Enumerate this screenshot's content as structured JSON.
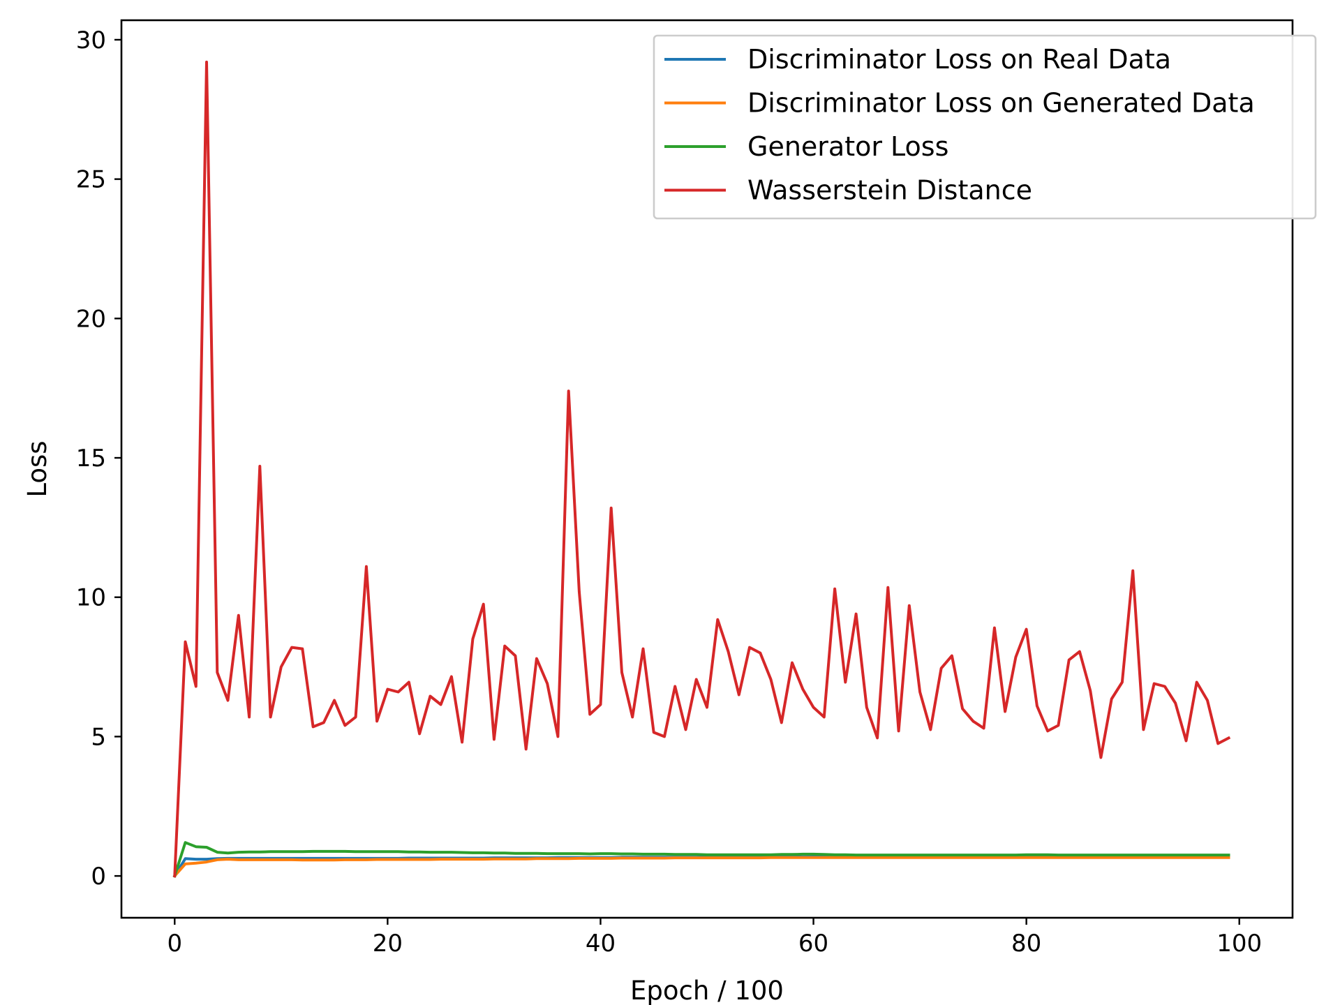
{
  "chart_data": {
    "type": "line",
    "title": "",
    "xlabel": "Epoch / 100",
    "ylabel": "Loss",
    "xlim": [
      -5,
      105
    ],
    "ylim": [
      -1.5,
      30.7
    ],
    "xticks": [
      0,
      20,
      40,
      60,
      80,
      100
    ],
    "yticks": [
      0,
      5,
      10,
      15,
      20,
      25,
      30
    ],
    "grid": false,
    "legend_position": "top-right",
    "x": [
      0,
      1,
      2,
      3,
      4,
      5,
      6,
      7,
      8,
      9,
      10,
      11,
      12,
      13,
      14,
      15,
      16,
      17,
      18,
      19,
      20,
      21,
      22,
      23,
      24,
      25,
      26,
      27,
      28,
      29,
      30,
      31,
      32,
      33,
      34,
      35,
      36,
      37,
      38,
      39,
      40,
      41,
      42,
      43,
      44,
      45,
      46,
      47,
      48,
      49,
      50,
      51,
      52,
      53,
      54,
      55,
      56,
      57,
      58,
      59,
      60,
      61,
      62,
      63,
      64,
      65,
      66,
      67,
      68,
      69,
      70,
      71,
      72,
      73,
      74,
      75,
      76,
      77,
      78,
      79,
      80,
      81,
      82,
      83,
      84,
      85,
      86,
      87,
      88,
      89,
      90,
      91,
      92,
      93,
      94,
      95,
      96,
      97,
      98,
      99
    ],
    "series": [
      {
        "name": "Discriminator Loss on Real Data",
        "color": "#1f77b4",
        "values": [
          0,
          0.62,
          0.6,
          0.6,
          0.62,
          0.63,
          0.63,
          0.63,
          0.63,
          0.63,
          0.63,
          0.63,
          0.63,
          0.63,
          0.63,
          0.63,
          0.63,
          0.63,
          0.63,
          0.63,
          0.63,
          0.63,
          0.64,
          0.64,
          0.64,
          0.64,
          0.64,
          0.64,
          0.64,
          0.64,
          0.65,
          0.65,
          0.65,
          0.65,
          0.65,
          0.65,
          0.66,
          0.66,
          0.66,
          0.66,
          0.66,
          0.66,
          0.67,
          0.67,
          0.67,
          0.67,
          0.67,
          0.67,
          0.67,
          0.67,
          0.68,
          0.68,
          0.68,
          0.68,
          0.68,
          0.68,
          0.68,
          0.68,
          0.68,
          0.68,
          0.69,
          0.69,
          0.69,
          0.69,
          0.69,
          0.69,
          0.69,
          0.69,
          0.69,
          0.69,
          0.69,
          0.69,
          0.69,
          0.69,
          0.69,
          0.69,
          0.69,
          0.69,
          0.69,
          0.69,
          0.69,
          0.69,
          0.69,
          0.69,
          0.69,
          0.69,
          0.69,
          0.69,
          0.69,
          0.69,
          0.69,
          0.69,
          0.69,
          0.69,
          0.69,
          0.69,
          0.69,
          0.69,
          0.69,
          0.69
        ]
      },
      {
        "name": "Discriminator Loss on Generated Data",
        "color": "#ff7f0e",
        "values": [
          0,
          0.43,
          0.46,
          0.5,
          0.58,
          0.6,
          0.58,
          0.58,
          0.58,
          0.58,
          0.58,
          0.58,
          0.57,
          0.57,
          0.57,
          0.57,
          0.58,
          0.58,
          0.58,
          0.59,
          0.59,
          0.59,
          0.59,
          0.59,
          0.59,
          0.6,
          0.6,
          0.6,
          0.6,
          0.6,
          0.61,
          0.61,
          0.61,
          0.61,
          0.62,
          0.62,
          0.62,
          0.62,
          0.63,
          0.63,
          0.63,
          0.63,
          0.64,
          0.64,
          0.64,
          0.64,
          0.64,
          0.65,
          0.65,
          0.65,
          0.65,
          0.65,
          0.65,
          0.65,
          0.65,
          0.65,
          0.66,
          0.66,
          0.66,
          0.66,
          0.66,
          0.66,
          0.66,
          0.66,
          0.66,
          0.66,
          0.66,
          0.66,
          0.66,
          0.66,
          0.66,
          0.66,
          0.66,
          0.66,
          0.66,
          0.66,
          0.66,
          0.66,
          0.66,
          0.66,
          0.66,
          0.66,
          0.66,
          0.66,
          0.66,
          0.66,
          0.66,
          0.66,
          0.66,
          0.66,
          0.66,
          0.66,
          0.66,
          0.66,
          0.66,
          0.66,
          0.66,
          0.66,
          0.66,
          0.66
        ]
      },
      {
        "name": "Generator Loss",
        "color": "#2ca02c",
        "values": [
          0,
          1.2,
          1.05,
          1.03,
          0.85,
          0.82,
          0.85,
          0.86,
          0.86,
          0.87,
          0.87,
          0.87,
          0.87,
          0.88,
          0.88,
          0.88,
          0.88,
          0.87,
          0.87,
          0.87,
          0.87,
          0.87,
          0.86,
          0.86,
          0.85,
          0.85,
          0.85,
          0.84,
          0.83,
          0.83,
          0.82,
          0.82,
          0.81,
          0.81,
          0.81,
          0.8,
          0.8,
          0.8,
          0.8,
          0.79,
          0.8,
          0.8,
          0.79,
          0.79,
          0.78,
          0.78,
          0.78,
          0.77,
          0.77,
          0.77,
          0.76,
          0.76,
          0.76,
          0.76,
          0.76,
          0.76,
          0.76,
          0.77,
          0.77,
          0.78,
          0.78,
          0.77,
          0.76,
          0.76,
          0.75,
          0.75,
          0.75,
          0.75,
          0.75,
          0.75,
          0.75,
          0.75,
          0.75,
          0.75,
          0.75,
          0.75,
          0.75,
          0.75,
          0.75,
          0.75,
          0.76,
          0.76,
          0.76,
          0.75,
          0.75,
          0.75,
          0.75,
          0.75,
          0.75,
          0.75,
          0.75,
          0.75,
          0.75,
          0.75,
          0.75,
          0.75,
          0.75,
          0.75,
          0.75,
          0.75
        ]
      },
      {
        "name": "Wasserstein Distance",
        "color": "#d62728",
        "values": [
          0,
          8.4,
          6.8,
          29.2,
          7.3,
          6.3,
          9.35,
          5.7,
          14.7,
          5.7,
          7.5,
          8.2,
          8.15,
          5.35,
          5.5,
          6.3,
          5.4,
          5.7,
          11.1,
          5.55,
          6.7,
          6.6,
          6.95,
          5.1,
          6.45,
          6.15,
          7.15,
          4.8,
          8.5,
          9.75,
          4.9,
          8.25,
          7.9,
          4.55,
          7.8,
          6.9,
          5.0,
          17.4,
          10.2,
          5.8,
          6.15,
          13.2,
          7.3,
          5.7,
          8.15,
          5.15,
          5.0,
          6.8,
          5.25,
          7.05,
          6.05,
          9.2,
          8.05,
          6.5,
          8.2,
          8.0,
          7.05,
          5.5,
          7.65,
          6.7,
          6.05,
          5.7,
          10.3,
          6.95,
          9.4,
          6.05,
          4.95,
          10.35,
          5.2,
          9.7,
          6.6,
          5.25,
          7.45,
          7.9,
          6.0,
          5.55,
          5.3,
          8.9,
          5.9,
          7.85,
          8.85,
          6.1,
          5.2,
          5.4,
          7.75,
          8.05,
          6.65,
          4.25,
          6.35,
          6.95,
          10.95,
          5.25,
          6.9,
          6.8,
          6.2,
          4.85,
          6.95,
          6.3,
          4.75,
          4.95
        ]
      }
    ]
  }
}
